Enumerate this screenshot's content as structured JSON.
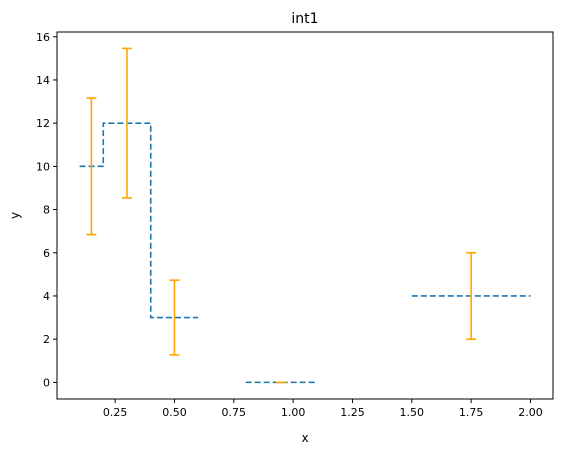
{
  "chart_data": {
    "type": "line",
    "title": "int1",
    "xlabel": "x",
    "ylabel": "y",
    "xlim": [
      0.005,
      2.095
    ],
    "ylim": [
      -0.77,
      16.22
    ],
    "x_ticks": [
      0.25,
      0.5,
      0.75,
      1.0,
      1.25,
      1.5,
      1.75,
      2.0
    ],
    "x_tick_labels": [
      "0.25",
      "0.50",
      "0.75",
      "1.00",
      "1.25",
      "1.50",
      "1.75",
      "2.00"
    ],
    "y_ticks": [
      0,
      2,
      4,
      6,
      8,
      10,
      12,
      14,
      16
    ],
    "y_tick_labels": [
      "0",
      "2",
      "4",
      "6",
      "8",
      "10",
      "12",
      "14",
      "16"
    ],
    "grid": false,
    "series": [
      {
        "style": "dashed-step",
        "color": "#1f77b4",
        "segments": [
          [
            [
              0.1,
              10
            ],
            [
              0.2,
              10
            ],
            [
              0.2,
              12
            ],
            [
              0.4,
              12
            ],
            [
              0.4,
              3
            ],
            [
              0.6,
              3
            ]
          ],
          [
            [
              0.8,
              0
            ],
            [
              1.1,
              0
            ]
          ],
          [
            [
              1.5,
              4
            ],
            [
              2.0,
              4
            ]
          ]
        ]
      },
      {
        "style": "errorbar",
        "color": "#ffa500",
        "points": [
          {
            "x": 0.15,
            "y": 10,
            "low": 6.84,
            "high": 13.16
          },
          {
            "x": 0.3,
            "y": 12,
            "low": 8.54,
            "high": 15.46
          },
          {
            "x": 0.5,
            "y": 3,
            "low": 1.27,
            "high": 4.73
          },
          {
            "x": 0.95,
            "y": 0,
            "low": 0,
            "high": 0
          },
          {
            "x": 1.75,
            "y": 4,
            "low": 2,
            "high": 6
          }
        ]
      }
    ]
  }
}
